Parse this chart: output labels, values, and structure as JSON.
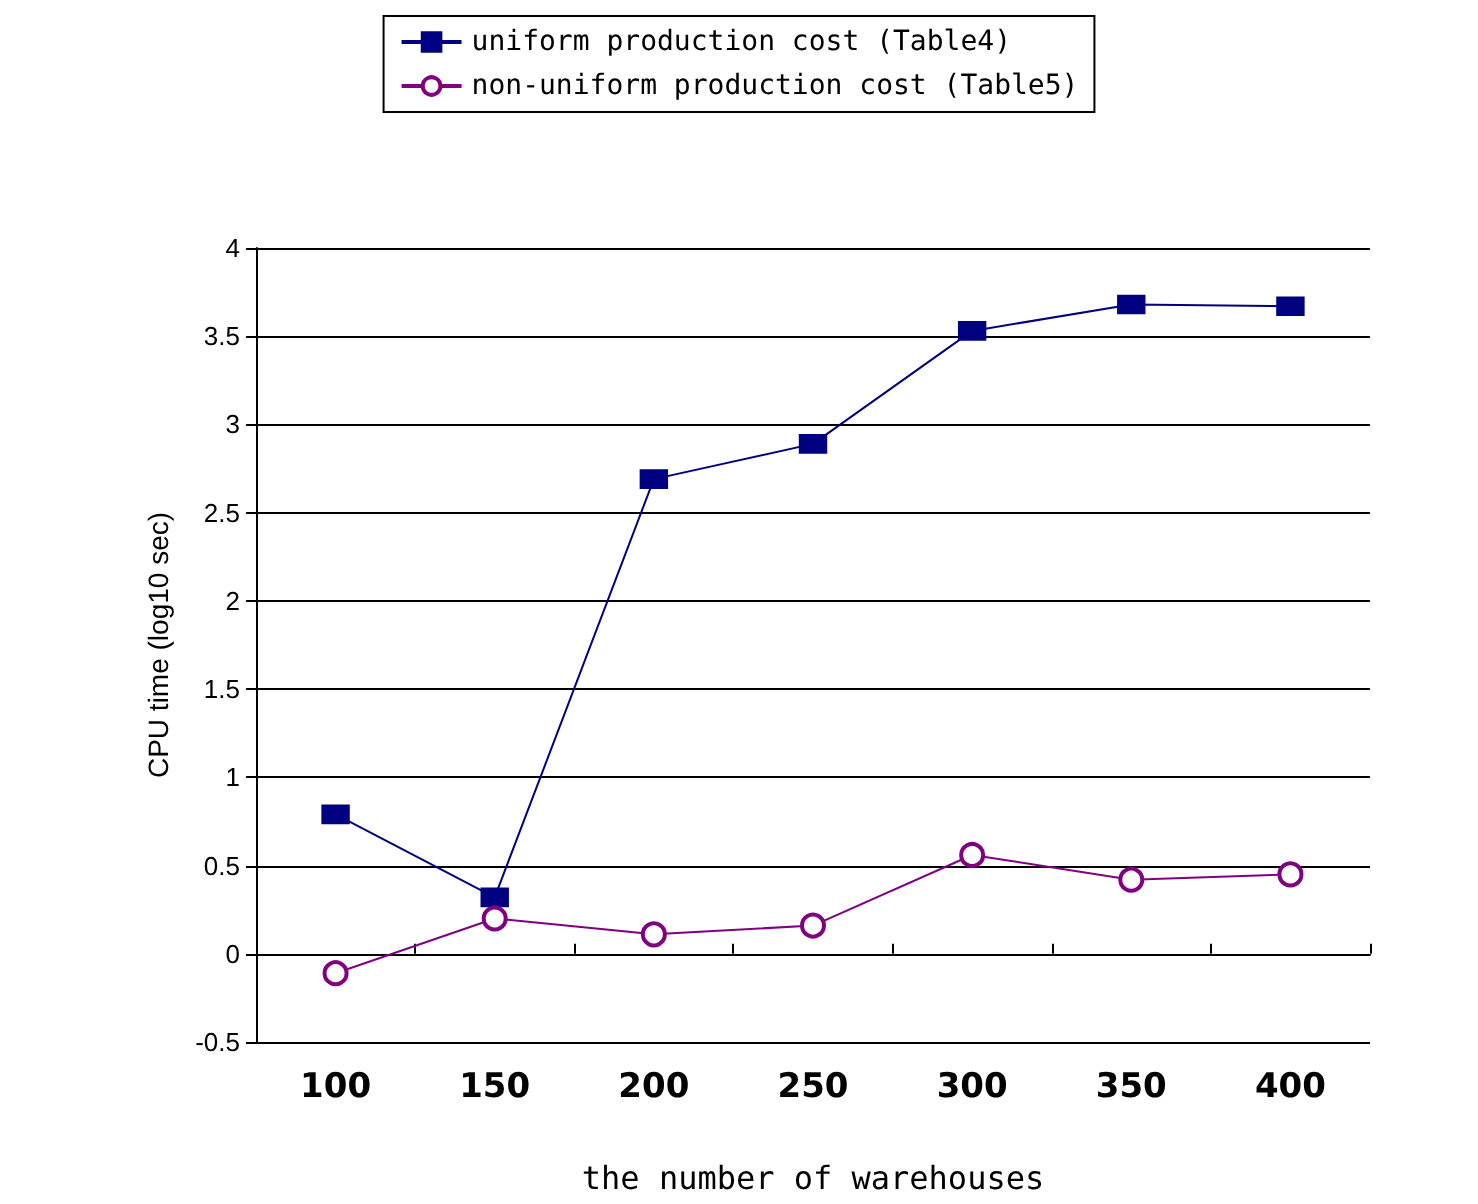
{
  "chart_data": {
    "type": "line",
    "xlabel": "the number of warehouses",
    "ylabel": "CPU time (log10 sec)",
    "categories": [
      "100",
      "150",
      "200",
      "250",
      "300",
      "350",
      "400"
    ],
    "series": [
      {
        "name": "uniform production cost (Table4)",
        "color": "#000080",
        "marker": "square",
        "values": [
          0.79,
          0.32,
          2.69,
          2.89,
          3.53,
          3.68,
          3.67
        ]
      },
      {
        "name": "non-uniform production cost (Table5)",
        "color": "#800080",
        "marker": "circle",
        "values": [
          -0.11,
          0.2,
          0.11,
          0.16,
          0.56,
          0.42,
          0.45
        ]
      }
    ],
    "ylim": [
      -0.5,
      4
    ],
    "yticks": [
      -0.5,
      0,
      0.5,
      1,
      1.5,
      2,
      2.5,
      3,
      3.5,
      4
    ],
    "grid": "y",
    "legend": "top",
    "line_style": "solid"
  }
}
